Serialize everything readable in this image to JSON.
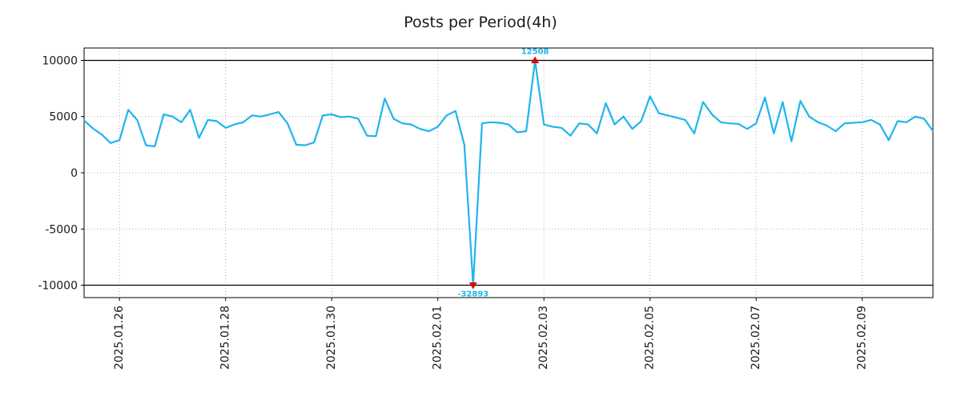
{
  "chart_data": {
    "type": "line",
    "title": "Posts per Period(4h)",
    "x_start": "2025-01-25 08:00",
    "x_interval_hours": 4,
    "values": [
      4650,
      3950,
      3400,
      2650,
      2900,
      5600,
      4700,
      2450,
      2350,
      5200,
      5000,
      4500,
      5600,
      3100,
      4700,
      4600,
      4000,
      4300,
      4500,
      5100,
      5000,
      5200,
      5400,
      4400,
      2500,
      2450,
      2700,
      5100,
      5200,
      4950,
      5000,
      4800,
      3300,
      3250,
      6600,
      4800,
      4400,
      4300,
      3900,
      3700,
      4100,
      5100,
      5500,
      2500,
      -32893,
      4400,
      4500,
      4450,
      4300,
      3600,
      3700,
      12508,
      4300,
      4100,
      4000,
      3300,
      4400,
      4300,
      3500,
      6200,
      4300,
      5000,
      3900,
      4600,
      6800,
      5300,
      5100,
      4900,
      4700,
      3500,
      6300,
      5200,
      4500,
      4400,
      4350,
      3900,
      4400,
      6700,
      3500,
      6300,
      2800,
      6400,
      5000,
      4500,
      4200,
      3700,
      4400,
      4450,
      4500,
      4700,
      4300,
      2900,
      4600,
      4500,
      5000,
      4800,
      3700
    ],
    "x_ticks": [
      {
        "index": 4,
        "label": "2025.01.26"
      },
      {
        "index": 16,
        "label": "2025.01.28"
      },
      {
        "index": 28,
        "label": "2025.01.30"
      },
      {
        "index": 40,
        "label": "2025.02.01"
      },
      {
        "index": 52,
        "label": "2025.02.03"
      },
      {
        "index": 64,
        "label": "2025.02.05"
      },
      {
        "index": 76,
        "label": "2025.02.07"
      },
      {
        "index": 88,
        "label": "2025.02.09"
      }
    ],
    "y_ticks": [
      10000,
      5000,
      0,
      -5000,
      -10000
    ],
    "ylim": [
      -11100,
      11100
    ],
    "clip_lines": [
      10000,
      -10000
    ],
    "grid": "dotted",
    "legend": "none",
    "line_color": "#1fb5ec",
    "marker_color": "#e60000",
    "annotation_color": "#1fb5ec",
    "axis_text_color": "#1a1a1a",
    "grid_color": "#b0b0b0",
    "annotations": [
      {
        "index": 51,
        "text": "12508",
        "value": 12508,
        "position": "top"
      },
      {
        "index": 44,
        "text": "-32893",
        "value": -32893,
        "position": "bottom"
      }
    ]
  }
}
